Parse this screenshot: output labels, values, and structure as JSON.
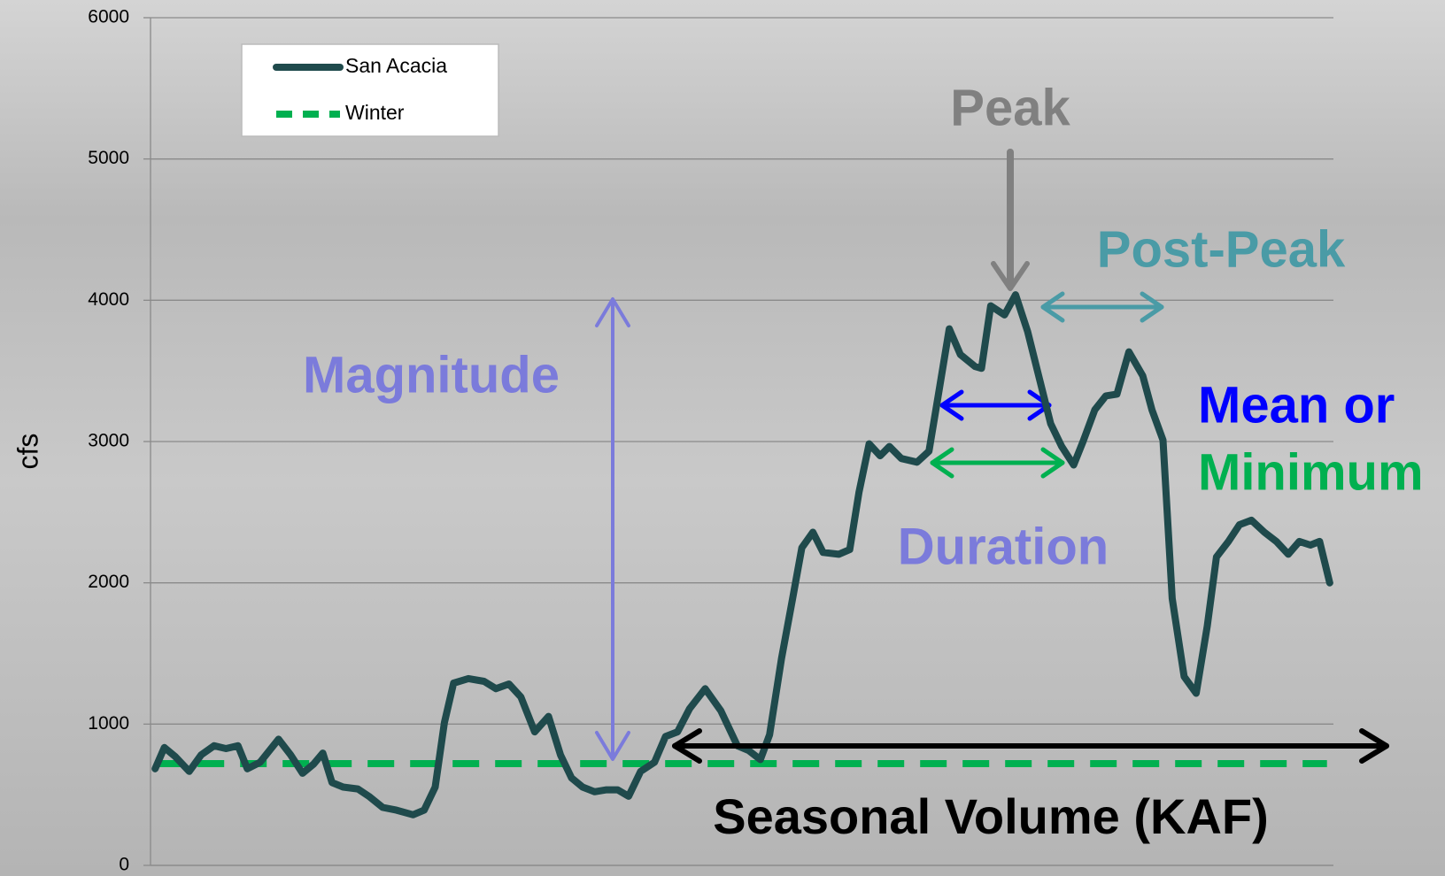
{
  "chart_data": {
    "type": "line",
    "ylabel": "cfs",
    "ylim": [
      0,
      6000
    ],
    "yticks": [
      0,
      1000,
      2000,
      3000,
      4000,
      5000,
      6000
    ],
    "xlim": [
      0,
      128.4
    ],
    "grid": true,
    "legend": "upper left",
    "series": [
      {
        "name": "San Acacia",
        "color": "#1f4a4c",
        "style": "solid",
        "x": [
          0.5,
          1.5,
          2.7,
          4.2,
          5.5,
          6.9,
          8.2,
          9.5,
          10.5,
          11.9,
          13.9,
          15.2,
          16.5,
          17.7,
          18.7,
          19.7,
          20.9,
          22.5,
          23.7,
          25.2,
          26.7,
          28.5,
          29.7,
          30.9,
          31.9,
          32.9,
          34.5,
          36.2,
          37.5,
          38.9,
          40.2,
          41.7,
          43.2,
          44.5,
          45.7,
          46.9,
          48.2,
          49.5,
          50.7,
          51.9,
          53.2,
          54.7,
          55.9,
          57.2,
          58.5,
          60.2,
          61.9,
          63.7,
          64.9,
          66.2,
          67.2,
          68.5,
          69.7,
          70.7,
          71.9,
          73.0,
          74.7,
          75.9,
          76.9,
          78.0,
          79.2,
          80.2,
          81.5,
          83.2,
          84.5,
          85.5,
          86.7,
          87.9,
          89.5,
          90.2,
          91.2,
          92.7,
          93.9,
          95.2,
          96.5,
          97.7,
          98.9,
          100.2,
          101.2,
          102.5,
          103.7,
          104.9,
          106.2,
          107.7,
          108.7,
          109.9,
          110.9,
          112.2,
          113.5,
          114.7,
          115.7,
          117.0,
          118.2,
          119.5,
          120.9,
          122.2,
          123.5,
          124.7,
          125.9,
          126.9,
          128.0
        ],
        "values": [
          684,
          834,
          769,
          665,
          782,
          847,
          827,
          847,
          684,
          730,
          893,
          782,
          652,
          717,
          795,
          586,
          554,
          541,
          489,
          410,
          391,
          358,
          391,
          554,
          1010,
          1290,
          1322,
          1303,
          1251,
          1284,
          1192,
          945,
          1055,
          782,
          619,
          554,
          521,
          535,
          535,
          489,
          665,
          730,
          912,
          945,
          1108,
          1251,
          1095,
          847,
          814,
          749,
          925,
          1466,
          1889,
          2248,
          2358,
          2215,
          2202,
          2235,
          2639,
          2984,
          2899,
          2965,
          2880,
          2854,
          2932,
          3323,
          3798,
          3616,
          3531,
          3518,
          3961,
          3896,
          4039,
          3779,
          3440,
          3127,
          2965,
          2834,
          2997,
          3225,
          3323,
          3336,
          3635,
          3466,
          3225,
          3010,
          1889,
          1336,
          1218,
          1694,
          2183,
          2293,
          2411,
          2443,
          2358,
          2293,
          2202,
          2293,
          2267,
          2293,
          2000
        ]
      },
      {
        "name": "Winter",
        "color": "#00b050",
        "style": "dashed",
        "x": [
          0.5,
          127.7
        ],
        "values": [
          720,
          720
        ]
      }
    ],
    "annotations": [
      {
        "text": "Peak",
        "color": "#808080"
      },
      {
        "text": "Post-Peak",
        "color": "#4a9ba6"
      },
      {
        "text": "Magnitude",
        "color": "#7b7bdb"
      },
      {
        "text": "Mean or",
        "color": "#0000ff"
      },
      {
        "text": "Minimum",
        "color": "#00b050"
      },
      {
        "text": "Duration",
        "color": "#7b7bdb"
      },
      {
        "text": "Seasonal Volume (KAF)",
        "color": "#000000"
      }
    ]
  }
}
